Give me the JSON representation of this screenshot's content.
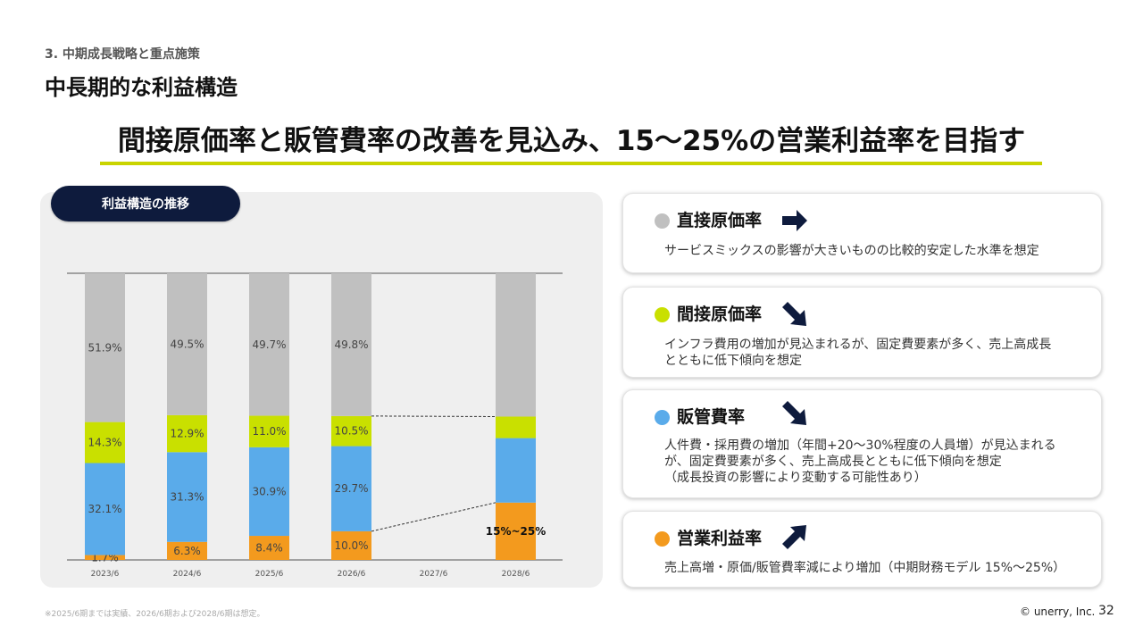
{
  "header": {
    "section": "3. 中期成長戦略と重点施策",
    "title": "中長期的な利益構造",
    "headline": "間接原価率と販管費率の改善を見込み、15～25%の営業利益率を目指す"
  },
  "chart_panel": {
    "pill_label": "利益構造の推移"
  },
  "chart_data": {
    "type": "bar",
    "stacked": true,
    "categories": [
      "2023/6",
      "2024/6",
      "2025/6",
      "2026/6",
      "2027/6",
      "2028/6"
    ],
    "ylim": [
      0,
      100
    ],
    "series": [
      {
        "name": "営業利益率",
        "color": "#f39a1e",
        "values": [
          1.7,
          6.3,
          8.4,
          10.0,
          null,
          20
        ],
        "labels": [
          "1.7%",
          "6.3%",
          "8.4%",
          "10.0%",
          "",
          ""
        ]
      },
      {
        "name": "販管費率",
        "color": "#5aabea",
        "values": [
          32.1,
          31.3,
          30.9,
          29.7,
          null,
          22.5
        ],
        "labels": [
          "32.1%",
          "31.3%",
          "30.9%",
          "29.7%",
          "",
          ""
        ]
      },
      {
        "name": "間接原価率",
        "color": "#c9e000",
        "values": [
          14.3,
          12.9,
          11.0,
          10.5,
          null,
          7.5
        ],
        "labels": [
          "14.3%",
          "12.9%",
          "11.0%",
          "10.5%",
          "",
          ""
        ]
      },
      {
        "name": "直接原価率",
        "color": "#c0c0c0",
        "values": [
          51.9,
          49.5,
          49.7,
          49.8,
          null,
          50
        ],
        "labels": [
          "51.9%",
          "49.5%",
          "49.7%",
          "49.8%",
          "",
          ""
        ]
      }
    ],
    "annotation": "15%~25%",
    "grid": false,
    "legend": "none"
  },
  "cards": [
    {
      "label": "直接原価率",
      "dot_color": "#c0c0c0",
      "arrow": "arrow-right-icon",
      "desc": [
        "サービスミックスの影響が大きいものの比較的安定した水準を想定"
      ]
    },
    {
      "label": "間接原価率",
      "dot_color": "#c9e000",
      "arrow": "arrow-down-right-icon",
      "desc": [
        "インフラ費用の増加が見込まれるが、固定費要素が多く、売上高成長",
        "とともに低下傾向を想定"
      ]
    },
    {
      "label": "販管費率",
      "dot_color": "#5aabea",
      "arrow": "arrow-down-right-icon",
      "desc": [
        "人件費・採用費の増加（年間+20～30%程度の人員増）が見込まれる",
        "が、固定費要素が多く、売上高成長とともに低下傾向を想定",
        "（成長投資の影響により変動する可能性あり）"
      ]
    },
    {
      "label": "営業利益率",
      "dot_color": "#f39a1e",
      "arrow": "arrow-up-right-icon",
      "desc": [
        "売上高増・原価/販管費率減により増加（中期財務モデル 15%～25%）"
      ]
    }
  ],
  "footer": {
    "footnote": "※2025/6期までは実績、2026/6期および2028/6期は想定。",
    "copyright": "© unerry, Inc.",
    "page": "32"
  }
}
